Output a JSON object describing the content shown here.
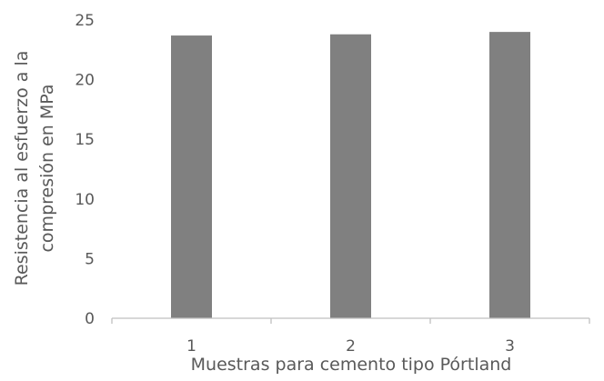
{
  "chart_data": {
    "type": "bar",
    "categories": [
      "1",
      "2",
      "3"
    ],
    "values": [
      23.7,
      23.8,
      24.0
    ],
    "title": "",
    "xlabel": "Muestras para cemento tipo Pórtland",
    "ylabel_lines": [
      "Resistencia al esfuerzo a la",
      "compresión en MPa"
    ],
    "ylim": [
      0,
      25
    ],
    "yticks": [
      0,
      5,
      10,
      15,
      20,
      25
    ],
    "grid": false,
    "legend": "none",
    "bar_color": "#808080",
    "axis_color": "#bfbfbf",
    "text_color": "#595959"
  }
}
